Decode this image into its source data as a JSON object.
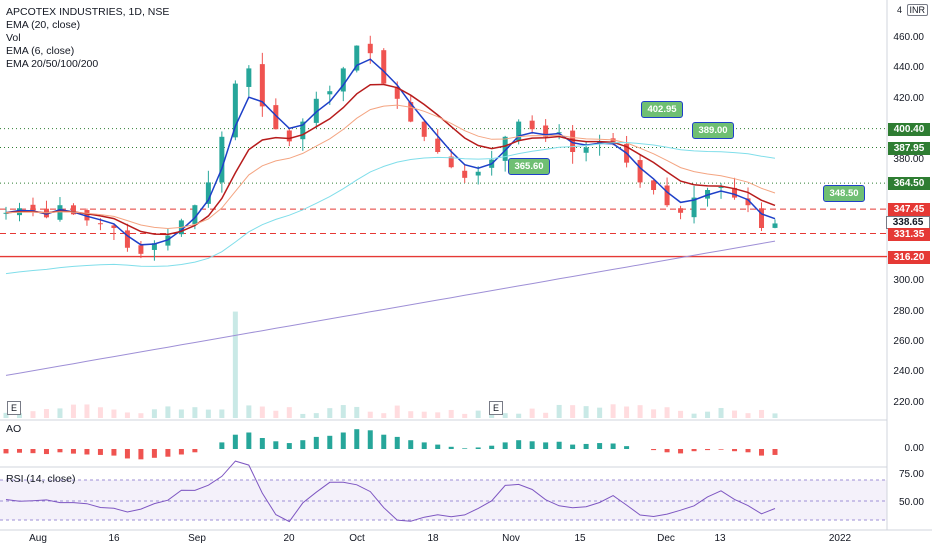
{
  "legend": {
    "symbol": "APCOTEX INDUSTRIES, 1D, NSE",
    "ema20": "EMA (20, close)",
    "vol": "Vol",
    "ema6": "EMA (6, close)",
    "ema_multi": "EMA 20/50/100/200"
  },
  "currency": {
    "top_value": "4",
    "code": "INR"
  },
  "price_scale": [
    "460.00",
    "440.00",
    "420.00",
    "380.00",
    "300.00",
    "280.00",
    "260.00",
    "240.00",
    "220.00"
  ],
  "price_tags": [
    {
      "label": "400.40",
      "color": "#2e7d32",
      "y": 400.4
    },
    {
      "label": "387.95",
      "color": "#2e7d32",
      "y": 387.95
    },
    {
      "label": "364.50",
      "color": "#2e7d32",
      "y": 364.5
    },
    {
      "label": "347.45",
      "color": "#e53935",
      "y": 347.45
    },
    {
      "label": "338.65",
      "color": "#ffffff",
      "y": 338.65
    },
    {
      "label": "331.35",
      "color": "#e53935",
      "y": 331.35
    },
    {
      "label": "316.20",
      "color": "#e53935",
      "y": 316.2
    }
  ],
  "callouts": [
    {
      "label": "402.95"
    },
    {
      "label": "389.00"
    },
    {
      "label": "365.60"
    },
    {
      "label": "348.50"
    }
  ],
  "ao": {
    "label": "AO",
    "scale": "0.00"
  },
  "rsi": {
    "label": "RSI (14, close)",
    "scale_top": "75.00",
    "scale_mid": "50.00"
  },
  "x_axis": [
    "Aug",
    "16",
    "Sep",
    "20",
    "Oct",
    "18",
    "Nov",
    "15",
    "Dec",
    "13",
    "2022"
  ],
  "earnings_marker": "E",
  "colors": {
    "up": "#26a69a",
    "down": "#ef5350",
    "ema20": "#b71c1c",
    "ema6": "#1e40c8",
    "ema50": "#f4a582",
    "ema100": "#80deea",
    "ema200": "#9e8fd6",
    "support": "#2e7d32",
    "resistance": "#e53935"
  }
}
